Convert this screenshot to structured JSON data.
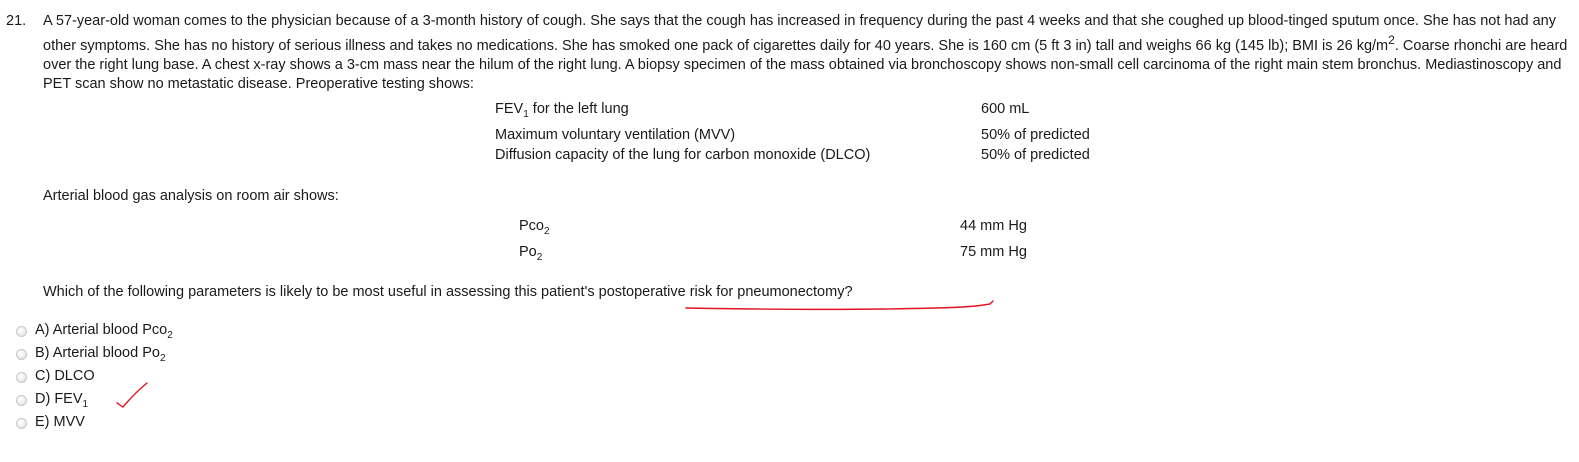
{
  "question": {
    "number": "21.",
    "stem": "A 57-year-old woman comes to the physician because of a 3-month history of cough. She says that the cough has increased in frequency during the past 4 weeks and that she coughed up blood-tinged sputum once. She has not had any other symptoms. She has no history of serious illness and takes no medications. She has smoked one pack of cigarettes daily for 40 years. She is 160 cm (5 ft 3 in) tall and weighs 66 kg (145 lb); BMI is 26 kg/m",
    "stem_sup": "2",
    "stem_rest": ". Coarse rhonchi are heard over the right lung base. A chest x-ray shows a 3-cm mass near the hilum of the right lung. A biopsy specimen of the mass obtained via bronchoscopy shows non-small cell carcinoma of the right main stem bronchus. Mediastinoscopy and PET scan show no metastatic disease. Preoperative testing shows:",
    "prompt": "Which of the following parameters is likely to be most useful in assessing this patient's postoperative risk for pneumonectomy?"
  },
  "preop_tests": [
    {
      "name": "FEV",
      "sub": "1",
      "name_rest": " for the left lung",
      "value": "600 mL"
    },
    {
      "name": "Maximum voluntary ventilation (MVV)",
      "sub": "",
      "name_rest": "",
      "value": "50% of predicted"
    },
    {
      "name": "Diffusion capacity of the lung for carbon monoxide (DLCO)",
      "sub": "",
      "name_rest": "",
      "value": "50% of predicted"
    }
  ],
  "abg": {
    "label": "Arterial blood gas analysis on room air shows:",
    "rows": [
      {
        "name": "Pco",
        "sub": "2",
        "value": "44 mm Hg"
      },
      {
        "name": "Po",
        "sub": "2",
        "value": "75 mm Hg"
      }
    ]
  },
  "options": [
    {
      "letter_text": "A) Arterial blood Pco",
      "sub": "2"
    },
    {
      "letter_text": "B) Arterial blood Po",
      "sub": "2"
    },
    {
      "letter_text": "C) DLCO",
      "sub": ""
    },
    {
      "letter_text": "D) FEV",
      "sub": "1"
    },
    {
      "letter_text": "E) MVV",
      "sub": ""
    }
  ],
  "annotations": {
    "ink_color": "#e0141e",
    "marks": [
      "underline-under-postoperative-risk-for-pneumonectomy",
      "check-mark-next-to-option-d"
    ]
  }
}
